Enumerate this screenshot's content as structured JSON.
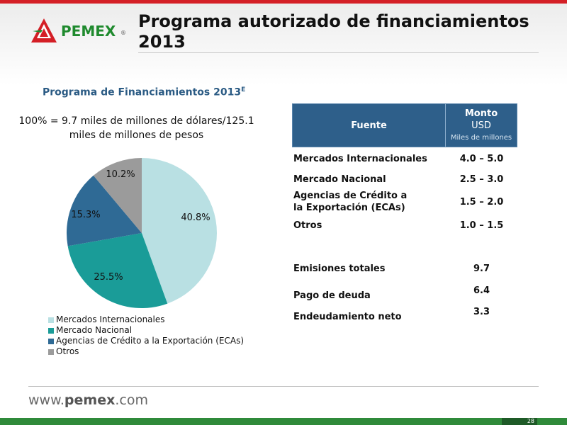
{
  "header": {
    "logo_text": "PEMEX",
    "logo_reg": "®",
    "title": "Programa autorizado de financiamientos 2013"
  },
  "colors": {
    "brand_red": "#d41f26",
    "brand_green": "#2f8a3a",
    "table_header": "#2e5f8a"
  },
  "chart_data": {
    "type": "pie",
    "title": "Programa de Financiamientos 2013",
    "title_superscript": "E",
    "subtitle": "100% = 9.7 miles de millones de dólares/125.1 miles de millones de pesos",
    "categories": [
      "Mercados Internacionales",
      "Mercado Nacional",
      "Agencias de Crédito a la Exportación (ECAs)",
      "Otros"
    ],
    "values": [
      40.8,
      25.5,
      15.3,
      10.2
    ],
    "labels": [
      "40.8%",
      "25.5%",
      "15.3%",
      "10.2%"
    ],
    "colors": [
      "#b9e0e3",
      "#1a9c98",
      "#2f6a95",
      "#9b9b9b"
    ],
    "legend_position": "bottom-left"
  },
  "table": {
    "header_fuente": "Fuente",
    "header_monto_1": "Monto",
    "header_monto_2": "USD",
    "header_monto_3": "Miles de millones",
    "rows": [
      {
        "fuente": "Mercados Internacionales",
        "monto": "4.0 – 5.0"
      },
      {
        "fuente": "Mercado Nacional",
        "monto": "2.5 – 3.0"
      },
      {
        "fuente": "Agencias de Crédito a la Exportación (ECAs)",
        "monto": "1.5 – 2.0"
      },
      {
        "fuente": "Otros",
        "monto": "1.0 – 1.5"
      },
      {
        "fuente": "Emisiones totales",
        "monto": "9.7"
      },
      {
        "fuente": "Pago de deuda",
        "monto": "6.4"
      },
      {
        "fuente": "Endeudamiento neto",
        "monto": "3.3"
      }
    ]
  },
  "footer": {
    "url_prefix": "www.",
    "url_brand": "pemex",
    "url_suffix": ".com",
    "page_number": "28"
  }
}
